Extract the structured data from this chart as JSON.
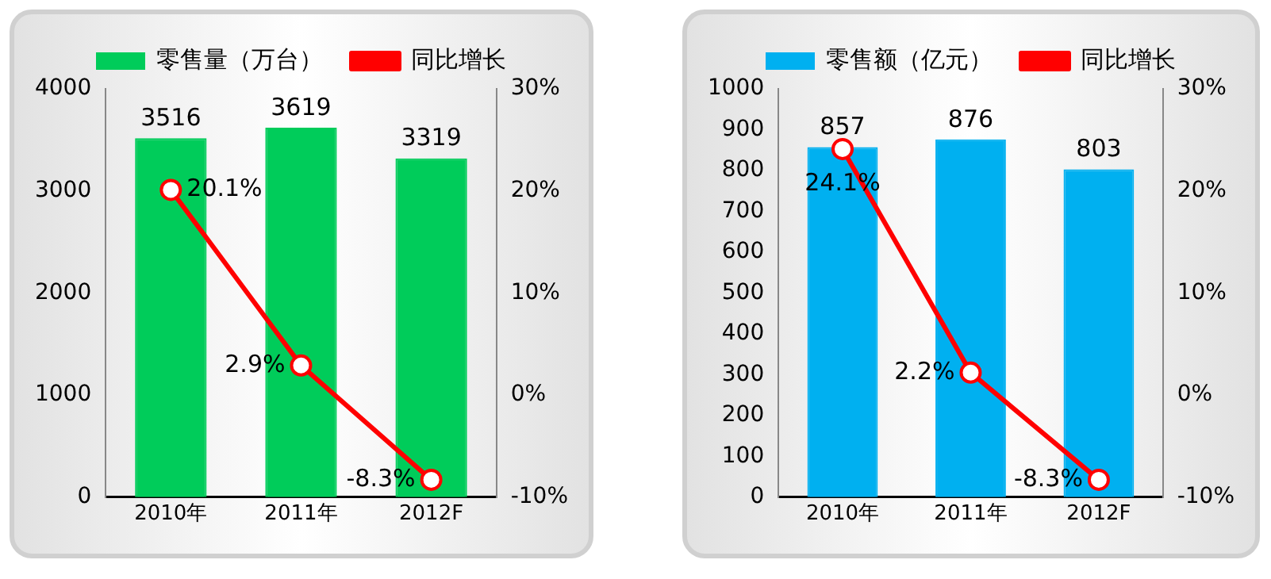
{
  "chart_data": [
    {
      "type": "bar",
      "categories": [
        "2010年",
        "2011年",
        "2012F"
      ],
      "legend": "top",
      "grid": false,
      "marker": "circle",
      "line_style": "solid",
      "ylim": [
        0,
        4000
      ],
      "yticks": [
        0,
        1000,
        2000,
        3000,
        4000
      ],
      "y2lim": [
        -10,
        30
      ],
      "y2ticks": [
        {
          "value": -10,
          "label": "-10%"
        },
        {
          "value": 0,
          "label": "0%"
        },
        {
          "value": 10,
          "label": "10%"
        },
        {
          "value": 20,
          "label": "20%"
        },
        {
          "value": 30,
          "label": "30%"
        }
      ],
      "series": [
        {
          "name": "零售量（万台）",
          "color": "#00cc5a",
          "values": [
            3516,
            3619,
            3319
          ],
          "value_labels": [
            "3516",
            "3619",
            "3319"
          ]
        },
        {
          "name": "同比增长",
          "type": "line",
          "axis": "y2",
          "color": "#ff0000",
          "values": [
            20.1,
            2.9,
            -8.3
          ],
          "value_labels": [
            "20.1%",
            "2.9%",
            "-8.3%"
          ]
        }
      ]
    },
    {
      "type": "bar",
      "categories": [
        "2010年",
        "2011年",
        "2012F"
      ],
      "legend": "top",
      "grid": false,
      "marker": "circle",
      "line_style": "solid",
      "ylim": [
        0,
        1000
      ],
      "yticks": [
        0,
        100,
        200,
        300,
        400,
        500,
        600,
        700,
        800,
        900,
        1000
      ],
      "y2lim": [
        -10,
        30
      ],
      "y2ticks": [
        {
          "value": -10,
          "label": "-10%"
        },
        {
          "value": 0,
          "label": "0%"
        },
        {
          "value": 10,
          "label": "10%"
        },
        {
          "value": 20,
          "label": "20%"
        },
        {
          "value": 30,
          "label": "30%"
        }
      ],
      "series": [
        {
          "name": "零售额（亿元）",
          "color": "#00b0f0",
          "values": [
            857,
            876,
            803
          ],
          "value_labels": [
            "857",
            "876",
            "803"
          ]
        },
        {
          "name": "同比增长",
          "type": "line",
          "axis": "y2",
          "color": "#ff0000",
          "values": [
            24.1,
            2.2,
            -8.3
          ],
          "value_labels": [
            "24.1%",
            "2.2%",
            "-8.3%"
          ]
        }
      ]
    }
  ]
}
